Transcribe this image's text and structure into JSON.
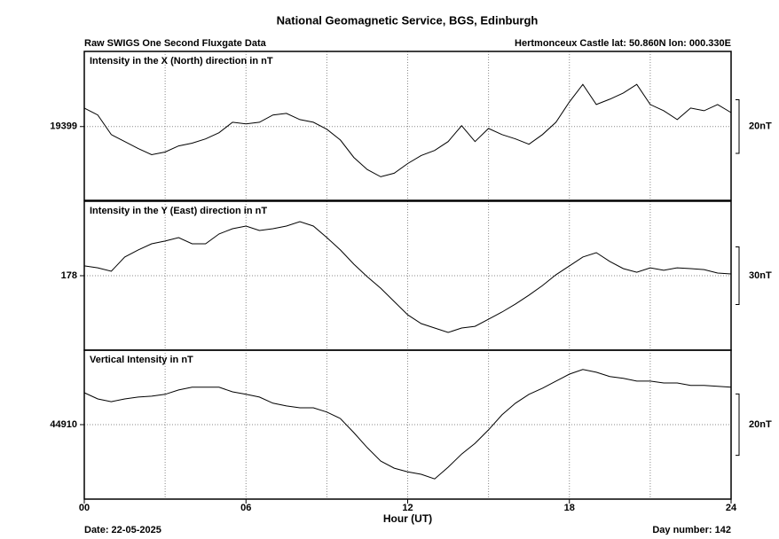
{
  "header": {
    "title": "National Geomagnetic Service, BGS, Edinburgh",
    "left": "Raw SWIGS One Second Fluxgate Data",
    "right": "Hertmonceux Castle  lat: 50.860N lon: 000.330E"
  },
  "footer": {
    "date": "Date: 22-05-2025",
    "day": "Day number:  142"
  },
  "chart_data": [
    {
      "type": "line",
      "title": "Intensity in the X (North) direction in nT",
      "color": "#000000",
      "x": [
        0,
        0.5,
        1,
        1.5,
        2,
        2.5,
        3,
        3.5,
        4,
        4.5,
        5,
        5.5,
        6,
        6.5,
        7,
        7.5,
        8,
        8.5,
        9,
        9.5,
        10,
        10.5,
        11,
        11.5,
        12,
        12.5,
        13,
        13.5,
        14,
        14.5,
        15,
        15.5,
        16,
        16.5,
        17,
        17.5,
        18,
        18.5,
        19,
        19.5,
        20,
        20.5,
        21,
        21.5,
        22,
        22.5,
        23,
        23.5,
        24
      ],
      "values": [
        19405.9,
        19403.3,
        19396,
        19393.4,
        19390.8,
        19388.5,
        19389.5,
        19391.8,
        19392.8,
        19394.4,
        19396.7,
        19400.6,
        19400,
        19400.6,
        19403.3,
        19403.9,
        19401.6,
        19400.6,
        19398,
        19394,
        19387.5,
        19383,
        19380.3,
        19381.6,
        19385.2,
        19388.2,
        19390.1,
        19393.4,
        19399.3,
        19393.4,
        19398.3,
        19396,
        19394.4,
        19392.4,
        19396,
        19400.6,
        19408.2,
        19414.7,
        19407.2,
        19409.2,
        19411.5,
        19414.7,
        19407.2,
        19404.9,
        19401.6,
        19405.9,
        19404.9,
        19407.2,
        19404.2
      ],
      "xlim": [
        0,
        24
      ],
      "ylim": [
        19371.5,
        19427
      ],
      "yticks": [
        19399
      ],
      "xgrid": [
        3,
        6,
        9,
        12,
        15,
        18,
        21
      ],
      "scale": {
        "value": 20,
        "label": "20nT"
      }
    },
    {
      "type": "line",
      "title": "Intensity in the Y (East) direction in nT",
      "color": "#000000",
      "x": [
        0,
        0.5,
        1,
        1.5,
        2,
        2.5,
        3,
        3.5,
        4,
        4.5,
        5,
        5.5,
        6,
        6.5,
        7,
        7.5,
        8,
        8.5,
        9,
        9.5,
        10,
        10.5,
        11,
        11.5,
        12,
        12.5,
        13,
        13.5,
        14,
        14.5,
        15,
        15.5,
        16,
        16.5,
        17,
        17.5,
        18,
        18.5,
        19,
        19.5,
        20,
        20.5,
        21,
        21.5,
        22,
        22.5,
        23,
        23.5,
        24
      ],
      "values": [
        183.1,
        182.1,
        180.3,
        187.7,
        191.4,
        194.6,
        196,
        197.8,
        194.6,
        194.6,
        199.7,
        202.4,
        203.8,
        201.5,
        202.4,
        203.8,
        206.1,
        203.8,
        197.8,
        191.4,
        184,
        177.5,
        171.5,
        164.6,
        157.7,
        153.1,
        150.8,
        148.5,
        150.8,
        151.7,
        155.4,
        159.1,
        163.3,
        167.9,
        172.9,
        178.5,
        183.1,
        187.7,
        190,
        185.4,
        181.7,
        179.8,
        182.1,
        180.8,
        182.1,
        181.7,
        181.2,
        179.4,
        178.9
      ],
      "xlim": [
        0,
        24
      ],
      "ylim": [
        139.3,
        216.7
      ],
      "yticks": [
        178
      ],
      "xgrid": [
        3,
        6,
        9,
        12,
        15,
        18,
        21
      ],
      "scale": {
        "value": 30,
        "label": "30nT"
      }
    },
    {
      "type": "line",
      "title": "Vertical Intensity in nT",
      "color": "#000000",
      "x": [
        0,
        0.5,
        1,
        1.5,
        2,
        2.5,
        3,
        3.5,
        4,
        4.5,
        5,
        5.5,
        6,
        6.5,
        7,
        7.5,
        8,
        8.5,
        9,
        9.5,
        10,
        10.5,
        11,
        11.5,
        12,
        12.5,
        13,
        13.5,
        14,
        14.5,
        15,
        15.5,
        16,
        16.5,
        17,
        17.5,
        18,
        18.5,
        19,
        19.5,
        20,
        20.5,
        21,
        21.5,
        22,
        22.5,
        23,
        23.5,
        24
      ],
      "values": [
        44920.4,
        44918.4,
        44917.5,
        44918.4,
        44919,
        44919.3,
        44919.9,
        44921.3,
        44922.2,
        44922.2,
        44922.2,
        44920.7,
        44919.9,
        44919,
        44917,
        44916.1,
        44915.5,
        44915.5,
        44914.1,
        44912,
        44907.4,
        44902.5,
        44898.1,
        44895.8,
        44894.6,
        44893.8,
        44892.3,
        44896.1,
        44900.4,
        44903.9,
        44908.3,
        44913.2,
        44917,
        44919.9,
        44921.9,
        44924.2,
        44926.5,
        44928,
        44927.1,
        44925.7,
        44925.1,
        44924.2,
        44924.2,
        44923.6,
        44923.6,
        44922.8,
        44922.8,
        44922.5,
        44922.2
      ],
      "xlim": [
        0,
        24
      ],
      "ylim": [
        44885.7,
        44934.3
      ],
      "yticks": [
        44910
      ],
      "xgrid": [
        3,
        6,
        9,
        12,
        15,
        18,
        21
      ],
      "scale": {
        "value": 20,
        "label": "20nT"
      },
      "xlabel": "Hour (UT)",
      "xticks": [
        {
          "value": 0,
          "label": "00"
        },
        {
          "value": 6,
          "label": "06"
        },
        12,
        18,
        24
      ]
    }
  ]
}
